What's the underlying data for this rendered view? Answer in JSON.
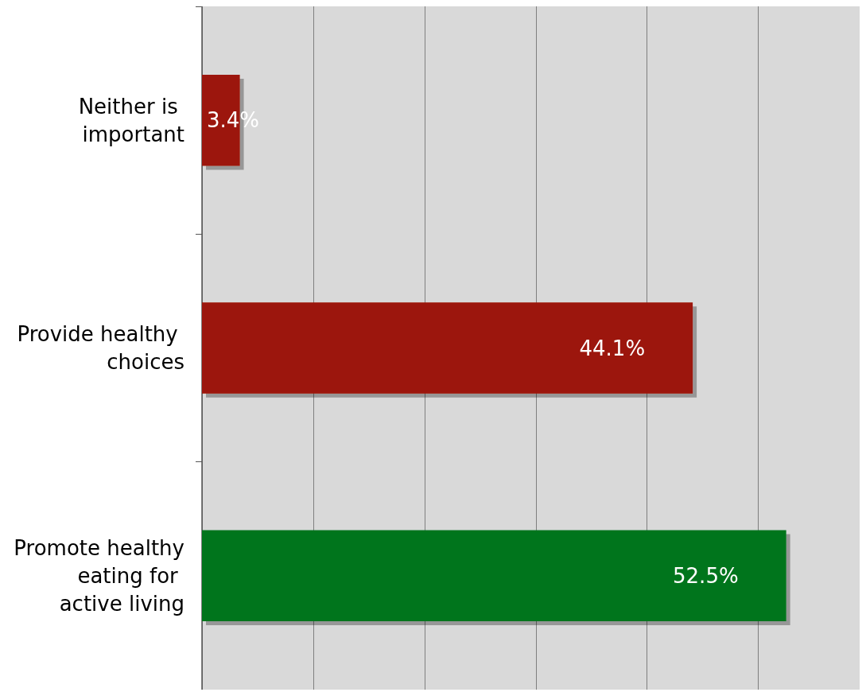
{
  "chart_data": {
    "type": "bar",
    "orientation": "horizontal",
    "categories": [
      "Neither is important",
      "Provide healthy choices",
      "Promote healthy eating for active living"
    ],
    "values": [
      3.4,
      44.1,
      52.5
    ],
    "colors": [
      "#9c1409",
      "#9c1409",
      "#00751e"
    ],
    "value_labels": [
      "3.4%",
      "44.1%",
      "52.5%"
    ],
    "xlim": [
      0,
      59.1
    ],
    "xticks": [
      {
        "value": 0,
        "label": null
      },
      {
        "value": 10,
        "label": null
      },
      {
        "value": 20,
        "label": null
      },
      {
        "value": 30,
        "label": null
      },
      {
        "value": 40,
        "label": null
      },
      {
        "value": 50,
        "label": null
      }
    ],
    "tick_labels": "y",
    "grid": "x"
  }
}
